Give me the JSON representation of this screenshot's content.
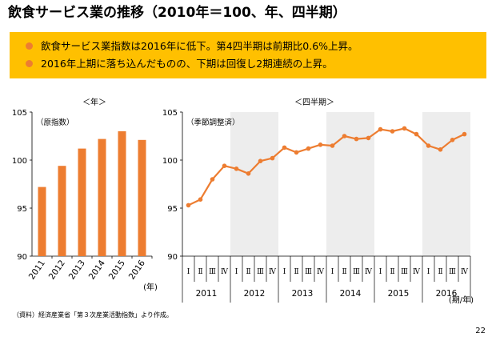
{
  "title": "飲食サービス業の推移（2010年＝100、年、四半期）",
  "summary": {
    "bullets": [
      "飲食サービス業指数は2016年に低下。第4四半期は前期比0.6%上昇。",
      "2016年上期に落ち込んだものの、下期は回復し2期連続の上昇。"
    ]
  },
  "colors": {
    "accent": "#ed7d31",
    "box": "#ffc000",
    "shade": "#ededed"
  },
  "chart_data": [
    {
      "type": "bar",
      "title": "＜年＞",
      "annotation": "（原指数）",
      "categories": [
        "2011",
        "2012",
        "2013",
        "2014",
        "2015",
        "2016"
      ],
      "values": [
        97.2,
        99.4,
        101.2,
        102.2,
        103.0,
        102.1
      ],
      "x_unit": "(年)",
      "ylim": [
        90,
        105
      ],
      "yticks": [
        "90",
        "95",
        "100",
        "105"
      ],
      "color": "#ed7d31"
    },
    {
      "type": "line",
      "title": "＜四半期＞",
      "annotation": "（季節調整済）",
      "quarter_labels": [
        "Ⅰ",
        "Ⅱ",
        "Ⅲ",
        "Ⅳ"
      ],
      "years": [
        "2011",
        "2012",
        "2013",
        "2014",
        "2015",
        "2016"
      ],
      "values": [
        95.3,
        95.9,
        98.0,
        99.4,
        99.1,
        98.6,
        99.9,
        100.2,
        101.3,
        100.8,
        101.2,
        101.6,
        101.5,
        102.5,
        102.2,
        102.3,
        103.2,
        103.0,
        103.3,
        102.7,
        101.5,
        101.1,
        102.1,
        102.7
      ],
      "x_unit": "(期/年)",
      "ylim": [
        90,
        105
      ],
      "yticks": [
        "90",
        "95",
        "100",
        "105"
      ],
      "shaded_years": [
        "2012",
        "2014",
        "2016"
      ],
      "color": "#ed7d31"
    }
  ],
  "source": "（資料）経済産業省「第３次産業活動指数」より作成。",
  "page_number": "22"
}
